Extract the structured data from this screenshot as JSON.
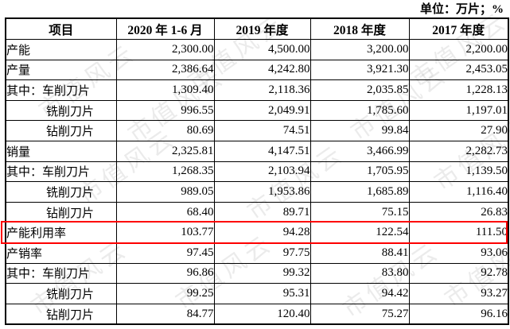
{
  "unit_label": "单位：万片；%",
  "watermark": "市值风云",
  "highlight_color": "#fe0000",
  "table": {
    "columns": [
      "项目",
      "2020 年 1-6 月",
      "2019 年度",
      "2018 年度",
      "2017 年度"
    ],
    "rows": [
      {
        "label": "产能",
        "indent": 0,
        "highlight": false,
        "values": [
          "2,300.00",
          "4,500.00",
          "3,200.00",
          "2,200.00"
        ]
      },
      {
        "label": "产量",
        "indent": 0,
        "highlight": false,
        "values": [
          "2,386.64",
          "4,242.80",
          "3,921.30",
          "2,453.05"
        ]
      },
      {
        "label": "其中：车削刀片",
        "indent": 0,
        "highlight": false,
        "values": [
          "1,309.40",
          "2,118.36",
          "2,035.85",
          "1,228.13"
        ]
      },
      {
        "label": "铣削刀片",
        "indent": 1,
        "highlight": false,
        "values": [
          "996.55",
          "2,049.91",
          "1,785.60",
          "1,197.01"
        ]
      },
      {
        "label": "钻削刀片",
        "indent": 1,
        "highlight": false,
        "values": [
          "80.69",
          "74.51",
          "99.84",
          "27.90"
        ]
      },
      {
        "label": "销量",
        "indent": 0,
        "highlight": false,
        "values": [
          "2,325.81",
          "4,147.51",
          "3,466.99",
          "2,282.73"
        ]
      },
      {
        "label": "其中：车削刀片",
        "indent": 0,
        "highlight": false,
        "values": [
          "1,268.35",
          "2,103.94",
          "1,705.95",
          "1,139.50"
        ]
      },
      {
        "label": "铣削刀片",
        "indent": 1,
        "highlight": false,
        "values": [
          "989.05",
          "1,953.86",
          "1,685.89",
          "1,116.40"
        ]
      },
      {
        "label": "钻削刀片",
        "indent": 1,
        "highlight": false,
        "values": [
          "68.40",
          "89.71",
          "75.15",
          "26.83"
        ]
      },
      {
        "label": "产能利用率",
        "indent": 0,
        "highlight": true,
        "values": [
          "103.77",
          "94.28",
          "122.54",
          "111.50"
        ]
      },
      {
        "label": "产销率",
        "indent": 0,
        "highlight": false,
        "values": [
          "97.45",
          "97.75",
          "88.41",
          "93.06"
        ]
      },
      {
        "label": "其中：车削刀片",
        "indent": 0,
        "highlight": false,
        "values": [
          "96.86",
          "99.32",
          "83.80",
          "92.78"
        ]
      },
      {
        "label": "铣削刀片",
        "indent": 1,
        "highlight": false,
        "values": [
          "99.25",
          "95.31",
          "94.42",
          "93.27"
        ]
      },
      {
        "label": "钻削刀片",
        "indent": 1,
        "highlight": false,
        "values": [
          "84.77",
          "120.40",
          "75.27",
          "96.16"
        ]
      }
    ]
  }
}
